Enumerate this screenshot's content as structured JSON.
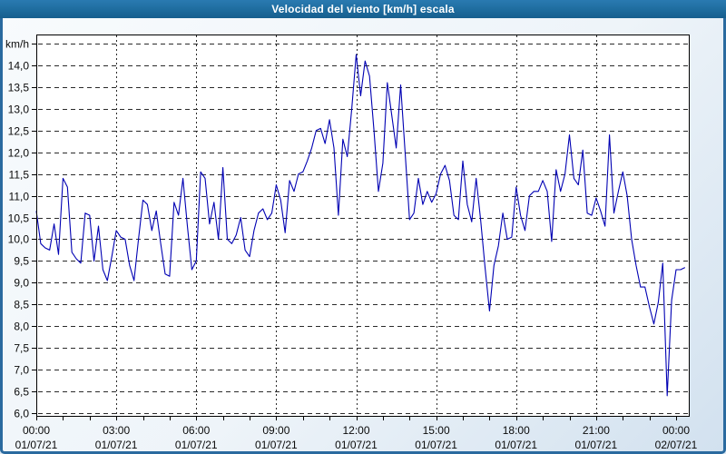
{
  "window": {
    "title": "Velocidad del viento [km/h] escala"
  },
  "colors": {
    "titlebar_bg": "#1e6c9e",
    "titlebar_text": "#ffffff",
    "panel_bg": "#eef4f9",
    "panel_border": "#2a6a9f",
    "plot_bg": "#ffffff",
    "plot_border": "#000000",
    "gridline": "#2a2a2a",
    "series_line": "#0000b3",
    "tick_text": "#0a0a0a"
  },
  "chart_data": {
    "type": "line",
    "title": "Velocidad del viento [km/h] escala",
    "ylabel": "km/h",
    "y_axis_unit_label": "km/h",
    "ylim": [
      6.0,
      14.5
    ],
    "y_tick_step": 0.5,
    "y_tick_values": [
      6.0,
      6.5,
      7.0,
      7.5,
      8.0,
      8.5,
      9.0,
      9.5,
      10.0,
      10.5,
      11.0,
      11.5,
      12.0,
      12.5,
      13.0,
      13.5,
      14.0
    ],
    "y_tick_labels": [
      "6,0",
      "6,5",
      "7,0",
      "7,5",
      "8,0",
      "8,5",
      "9,0",
      "9,5",
      "10,0",
      "10,5",
      "11,0",
      "11,5",
      "12,0",
      "12,5",
      "13,0",
      "13,5",
      "14,0"
    ],
    "x_hours_range": [
      0,
      24
    ],
    "x_minor_tick_every_hours": 1,
    "grid": "dashed",
    "legend": "none",
    "x_ticks": [
      {
        "hour": 0,
        "time": "00:00",
        "date": "01/07/21"
      },
      {
        "hour": 3,
        "time": "03:00",
        "date": "01/07/21"
      },
      {
        "hour": 6,
        "time": "06:00",
        "date": "01/07/21"
      },
      {
        "hour": 9,
        "time": "09:00",
        "date": "01/07/21"
      },
      {
        "hour": 12,
        "time": "12:00",
        "date": "01/07/21"
      },
      {
        "hour": 15,
        "time": "15:00",
        "date": "01/07/21"
      },
      {
        "hour": 18,
        "time": "18:00",
        "date": "01/07/21"
      },
      {
        "hour": 21,
        "time": "21:00",
        "date": "01/07/21"
      },
      {
        "hour": 24,
        "time": "00:00",
        "date": "02/07/21"
      }
    ],
    "series": [
      {
        "name": "Velocidad del viento [km/h]",
        "start_time": "00:00",
        "step_minutes": 10,
        "values": [
          10.65,
          9.9,
          9.8,
          9.75,
          10.35,
          9.65,
          11.4,
          11.2,
          9.7,
          9.55,
          9.45,
          10.6,
          10.55,
          9.5,
          10.3,
          9.3,
          9.05,
          9.6,
          10.2,
          10.05,
          10.0,
          9.4,
          9.05,
          10.0,
          10.9,
          10.8,
          10.2,
          10.65,
          9.9,
          9.2,
          9.15,
          10.85,
          10.55,
          11.4,
          10.3,
          9.3,
          9.5,
          11.55,
          11.4,
          10.35,
          10.85,
          10.0,
          11.65,
          10.0,
          9.9,
          10.1,
          10.5,
          9.75,
          9.6,
          10.2,
          10.6,
          10.7,
          10.45,
          10.6,
          11.25,
          10.9,
          10.15,
          11.35,
          11.1,
          11.5,
          11.55,
          11.8,
          12.1,
          12.5,
          12.55,
          12.2,
          12.75,
          12.1,
          10.55,
          12.3,
          11.9,
          13.0,
          14.25,
          13.3,
          14.1,
          13.75,
          12.5,
          11.1,
          11.75,
          13.6,
          12.85,
          12.1,
          13.55,
          12.0,
          10.45,
          10.6,
          11.4,
          10.8,
          11.1,
          10.85,
          11.05,
          11.5,
          11.7,
          11.35,
          10.55,
          10.45,
          11.8,
          10.8,
          10.4,
          11.4,
          10.45,
          9.35,
          8.35,
          9.4,
          9.85,
          10.6,
          10.0,
          10.05,
          11.2,
          10.55,
          10.2,
          11.0,
          11.1,
          11.1,
          11.35,
          11.1,
          9.95,
          11.6,
          11.1,
          11.5,
          12.4,
          11.4,
          11.25,
          12.05,
          10.6,
          10.55,
          10.95,
          10.65,
          10.3,
          12.4,
          10.6,
          11.1,
          11.55,
          11.0,
          10.0,
          9.4,
          8.9,
          8.9,
          8.45,
          8.05,
          8.55,
          9.45,
          6.4,
          8.6,
          9.3,
          9.3,
          9.35
        ]
      }
    ]
  }
}
